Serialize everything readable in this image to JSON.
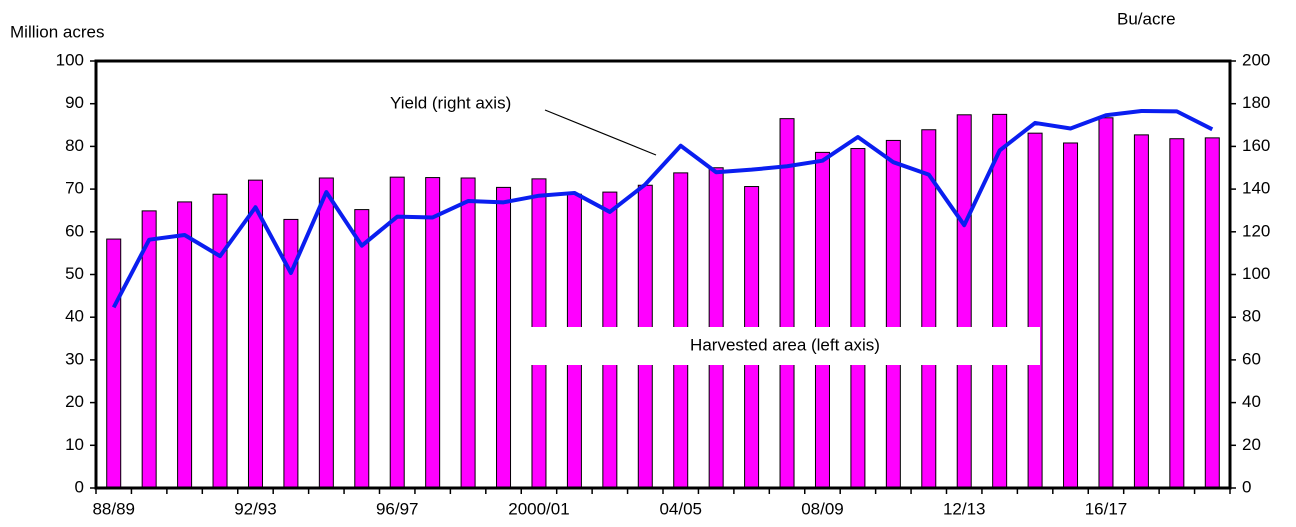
{
  "chart_data": {
    "type": "bar_line",
    "y_label": "Million acres",
    "y2_label": "Bu/acre",
    "categories": [
      "88/89",
      null,
      null,
      null,
      "92/93",
      null,
      null,
      null,
      "96/97",
      null,
      null,
      null,
      "2000/01",
      null,
      null,
      null,
      "04/05",
      null,
      null,
      null,
      "08/09",
      null,
      null,
      null,
      "12/13",
      null,
      null,
      null,
      "16/17",
      null,
      null,
      null
    ],
    "series": [
      {
        "name": "Harvested area (left axis)",
        "type": "bar",
        "color": "#ff00ff",
        "axis": "y",
        "values": [
          58.3,
          64.9,
          67.0,
          68.8,
          72.1,
          62.9,
          72.6,
          65.2,
          72.8,
          72.7,
          72.6,
          70.4,
          72.4,
          68.8,
          69.3,
          70.9,
          73.8,
          75.0,
          70.6,
          86.5,
          78.6,
          79.5,
          81.4,
          83.9,
          87.4,
          87.5,
          83.1,
          80.8,
          86.7,
          82.7,
          81.8,
          82.0
        ]
      },
      {
        "name": "Yield (right axis)",
        "type": "line",
        "color": "#0a1ef0",
        "axis": "y2",
        "values": [
          84.6,
          116.3,
          118.5,
          108.6,
          131.5,
          100.7,
          138.6,
          113.5,
          127.1,
          126.7,
          134.4,
          133.8,
          136.9,
          138.2,
          129.3,
          142.2,
          160.3,
          147.9,
          149.1,
          150.7,
          153.3,
          164.4,
          152.6,
          146.8,
          123.1,
          158.1,
          171.0,
          168.4,
          174.6,
          176.6,
          176.4,
          168.0
        ]
      }
    ],
    "ylim": [
      0,
      100
    ],
    "yticks": [
      0,
      10,
      20,
      30,
      40,
      50,
      60,
      70,
      80,
      90,
      100
    ],
    "y2lim": [
      0,
      200
    ],
    "y2ticks": [
      0,
      20,
      40,
      60,
      80,
      100,
      120,
      140,
      160,
      180,
      200
    ]
  }
}
